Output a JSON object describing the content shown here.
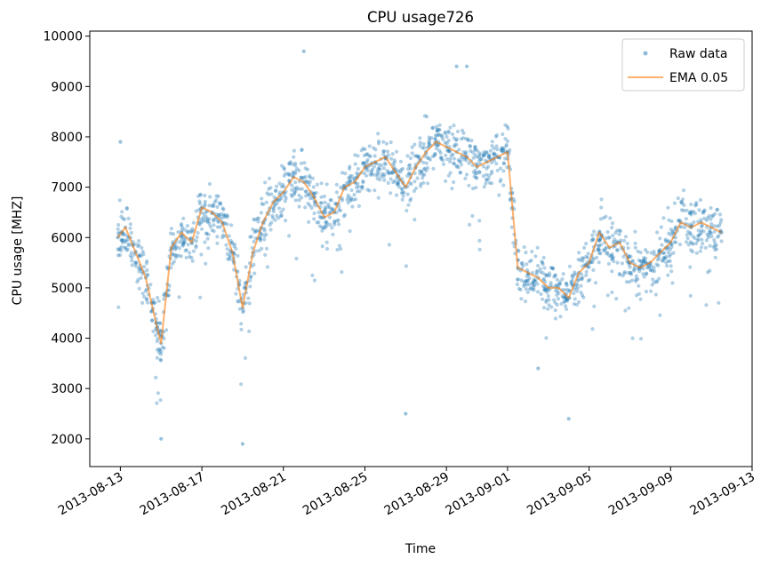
{
  "chart_data": {
    "type": "scatter",
    "title": "CPU usage726",
    "xlabel": "Time",
    "ylabel": "CPU usage [MHZ]",
    "xlim": [
      "2013-08-11T12:00",
      "2013-09-13T00:00"
    ],
    "ylim": [
      1450,
      10100
    ],
    "x_ticks": [
      "2013-08-13",
      "2013-08-17",
      "2013-08-21",
      "2013-08-25",
      "2013-08-29",
      "2013-09-01",
      "2013-09-05",
      "2013-09-09",
      "2013-09-13"
    ],
    "y_ticks": [
      2000,
      3000,
      4000,
      5000,
      6000,
      7000,
      8000,
      9000,
      10000
    ],
    "legend_position": "top-right",
    "series": [
      {
        "name": "Raw data",
        "kind": "points",
        "color": "#1f77b4",
        "note": "dense raw samples, approximately every 5 minutes; points below are representative readings",
        "x": [
          "2013-08-12T21:00",
          "2013-08-13T06:00",
          "2013-08-13T18:00",
          "2013-08-14T06:00",
          "2013-08-14T18:00",
          "2013-08-15T00:00",
          "2013-08-15T12:00",
          "2013-08-16T00:00",
          "2013-08-16T12:00",
          "2013-08-17T00:00",
          "2013-08-17T12:00",
          "2013-08-18T00:00",
          "2013-08-18T12:00",
          "2013-08-19T00:00",
          "2013-08-19T12:00",
          "2013-08-20T00:00",
          "2013-08-20T12:00",
          "2013-08-21T00:00",
          "2013-08-21T12:00",
          "2013-08-22T00:00",
          "2013-08-22T12:00",
          "2013-08-23T00:00",
          "2013-08-23T12:00",
          "2013-08-24T00:00",
          "2013-08-24T12:00",
          "2013-08-25T00:00",
          "2013-08-25T12:00",
          "2013-08-26T00:00",
          "2013-08-26T12:00",
          "2013-08-27T00:00",
          "2013-08-27T12:00",
          "2013-08-28T00:00",
          "2013-08-28T12:00",
          "2013-08-29T00:00",
          "2013-08-29T12:00",
          "2013-08-30T00:00",
          "2013-08-30T12:00",
          "2013-08-31T00:00",
          "2013-08-31T12:00",
          "2013-09-01T00:00",
          "2013-09-01T12:00",
          "2013-09-02T00:00",
          "2013-09-02T12:00",
          "2013-09-03T00:00",
          "2013-09-03T12:00",
          "2013-09-04T00:00",
          "2013-09-04T12:00",
          "2013-09-05T00:00",
          "2013-09-05T12:00",
          "2013-09-06T00:00",
          "2013-09-06T12:00",
          "2013-09-07T00:00",
          "2013-09-07T12:00",
          "2013-09-08T00:00",
          "2013-09-08T12:00",
          "2013-09-09T00:00",
          "2013-09-09T12:00",
          "2013-09-10T00:00",
          "2013-09-10T12:00",
          "2013-09-11T00:00",
          "2013-09-11T12:00",
          "2013-08-13T00:00",
          "2013-08-15T00:00",
          "2013-08-19T00:00",
          "2013-08-22T00:00",
          "2013-08-29T12:00",
          "2013-08-30T00:00",
          "2013-08-27T00:00",
          "2013-09-04T00:00",
          "2013-09-02T12:00"
        ],
        "y": [
          6000,
          6200,
          5700,
          5200,
          4300,
          3900,
          5800,
          6100,
          5900,
          6600,
          6500,
          6300,
          5700,
          4600,
          5700,
          6300,
          6700,
          6900,
          7200,
          7100,
          6800,
          6400,
          6500,
          7000,
          7100,
          7400,
          7500,
          7600,
          7300,
          7000,
          7400,
          7700,
          7900,
          7800,
          7700,
          7600,
          7400,
          7500,
          7600,
          7700,
          5400,
          5300,
          5200,
          5000,
          5000,
          4800,
          5300,
          5500,
          6100,
          5800,
          5900,
          5500,
          5400,
          5500,
          5700,
          5900,
          6300,
          6200,
          6300,
          6200,
          6100,
          7900,
          2000,
          1900,
          9700,
          9400,
          9400,
          2500,
          2400,
          3400
        ]
      },
      {
        "name": "EMA 0.05",
        "kind": "line",
        "color": "#ff7f0e",
        "x": [
          "2013-08-12T21:00",
          "2013-08-13T06:00",
          "2013-08-13T18:00",
          "2013-08-14T06:00",
          "2013-08-14T18:00",
          "2013-08-15T00:00",
          "2013-08-15T12:00",
          "2013-08-16T00:00",
          "2013-08-16T12:00",
          "2013-08-17T00:00",
          "2013-08-17T12:00",
          "2013-08-18T00:00",
          "2013-08-18T12:00",
          "2013-08-19T00:00",
          "2013-08-19T12:00",
          "2013-08-20T00:00",
          "2013-08-20T12:00",
          "2013-08-21T00:00",
          "2013-08-21T12:00",
          "2013-08-22T00:00",
          "2013-08-22T12:00",
          "2013-08-23T00:00",
          "2013-08-23T12:00",
          "2013-08-24T00:00",
          "2013-08-24T12:00",
          "2013-08-25T00:00",
          "2013-08-25T12:00",
          "2013-08-26T00:00",
          "2013-08-26T12:00",
          "2013-08-27T00:00",
          "2013-08-27T12:00",
          "2013-08-28T00:00",
          "2013-08-28T12:00",
          "2013-08-29T00:00",
          "2013-08-29T12:00",
          "2013-08-30T00:00",
          "2013-08-30T12:00",
          "2013-08-31T00:00",
          "2013-08-31T12:00",
          "2013-09-01T00:00",
          "2013-09-01T12:00",
          "2013-09-02T00:00",
          "2013-09-02T12:00",
          "2013-09-03T00:00",
          "2013-09-03T12:00",
          "2013-09-04T00:00",
          "2013-09-04T12:00",
          "2013-09-05T00:00",
          "2013-09-05T12:00",
          "2013-09-06T00:00",
          "2013-09-06T12:00",
          "2013-09-07T00:00",
          "2013-09-07T12:00",
          "2013-09-08T00:00",
          "2013-09-08T12:00",
          "2013-09-09T00:00",
          "2013-09-09T12:00",
          "2013-09-10T00:00",
          "2013-09-10T12:00",
          "2013-09-11T00:00",
          "2013-09-11T12:00"
        ],
        "y": [
          6000,
          6200,
          5700,
          5200,
          4300,
          3900,
          5800,
          6100,
          5900,
          6600,
          6500,
          6300,
          5700,
          4600,
          5700,
          6300,
          6700,
          6900,
          7200,
          7100,
          6800,
          6400,
          6500,
          7000,
          7100,
          7400,
          7500,
          7600,
          7300,
          7000,
          7400,
          7700,
          7900,
          7800,
          7700,
          7600,
          7400,
          7500,
          7600,
          7700,
          5400,
          5300,
          5200,
          5000,
          5000,
          4800,
          5300,
          5500,
          6100,
          5800,
          5900,
          5500,
          5400,
          5500,
          5700,
          5900,
          6300,
          6200,
          6300,
          6200,
          6100
        ]
      }
    ]
  }
}
